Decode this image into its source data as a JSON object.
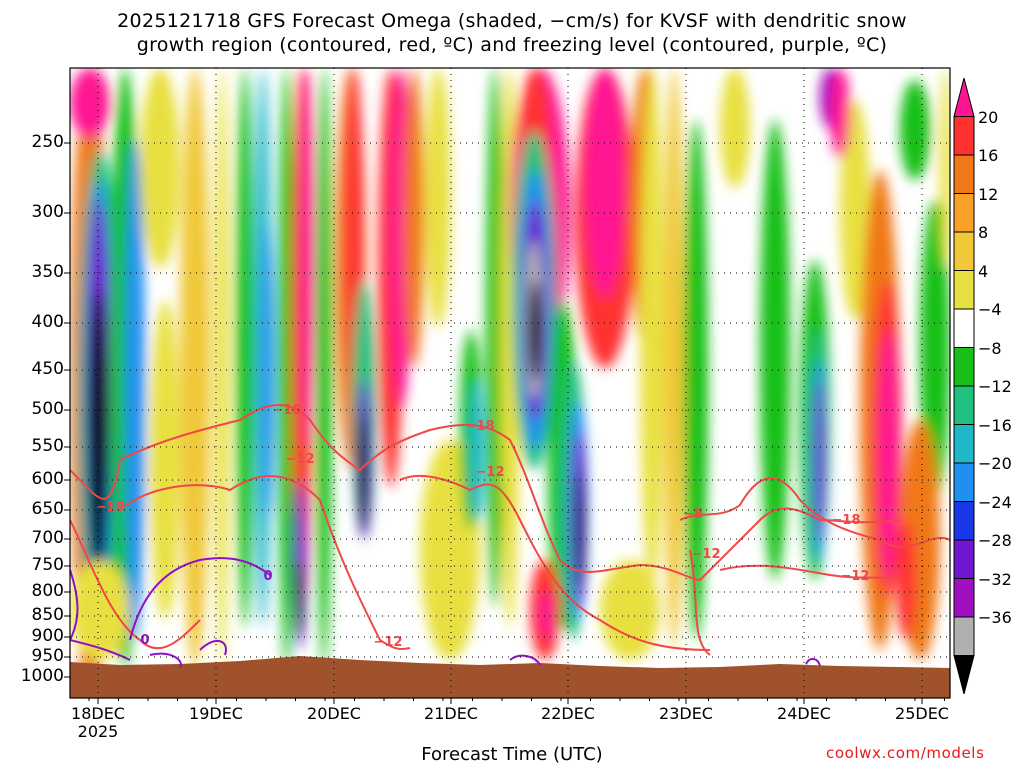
{
  "title_line1": "2025121718 GFS Forecast Omega (shaded, −cm/s) for KVSF with dendritic snow",
  "title_line2": "growth region (contoured, red, ºC) and freezing level (contoured, purple, ºC)",
  "credit": "coolwx.com/models",
  "chart_data": {
    "type": "heatmap",
    "xlabel": "Forecast Time (UTC)",
    "ylabel": "",
    "x_ticks": [
      "18DEC",
      "19DEC",
      "20DEC",
      "21DEC",
      "22DEC",
      "23DEC",
      "24DEC",
      "25DEC"
    ],
    "x_tick_sublabel": "2025",
    "x_range_hours_from_18DEC00": [
      -6,
      180
    ],
    "y_ticks": [
      "250",
      "300",
      "350",
      "400",
      "450",
      "500",
      "550",
      "600",
      "650",
      "700",
      "750",
      "800",
      "850",
      "900",
      "950",
      "1000"
    ],
    "y_range_hPa": [
      200,
      1000
    ],
    "colorbar": {
      "labels": [
        "20",
        "16",
        "12",
        "8",
        "4",
        "−4",
        "−8",
        "−12",
        "−16",
        "−20",
        "−24",
        "−28",
        "−32",
        "−36"
      ],
      "colors": [
        "#ff1493",
        "#ff3030",
        "#f07818",
        "#f8a028",
        "#f0c838",
        "#e8e040",
        "#ffffff",
        "#18c018",
        "#20c080",
        "#20b8c8",
        "#2090f0",
        "#1838e8",
        "#7018d0",
        "#a010c0",
        "#b0b0b0",
        "#000000"
      ]
    },
    "contours": [
      {
        "label": "−18",
        "color": "#f04848"
      },
      {
        "label": "−12",
        "color": "#f04848"
      },
      {
        "label": "−8",
        "color": "#f04848"
      },
      {
        "label": "0",
        "color": "#9010c8"
      }
    ],
    "grid": true
  }
}
